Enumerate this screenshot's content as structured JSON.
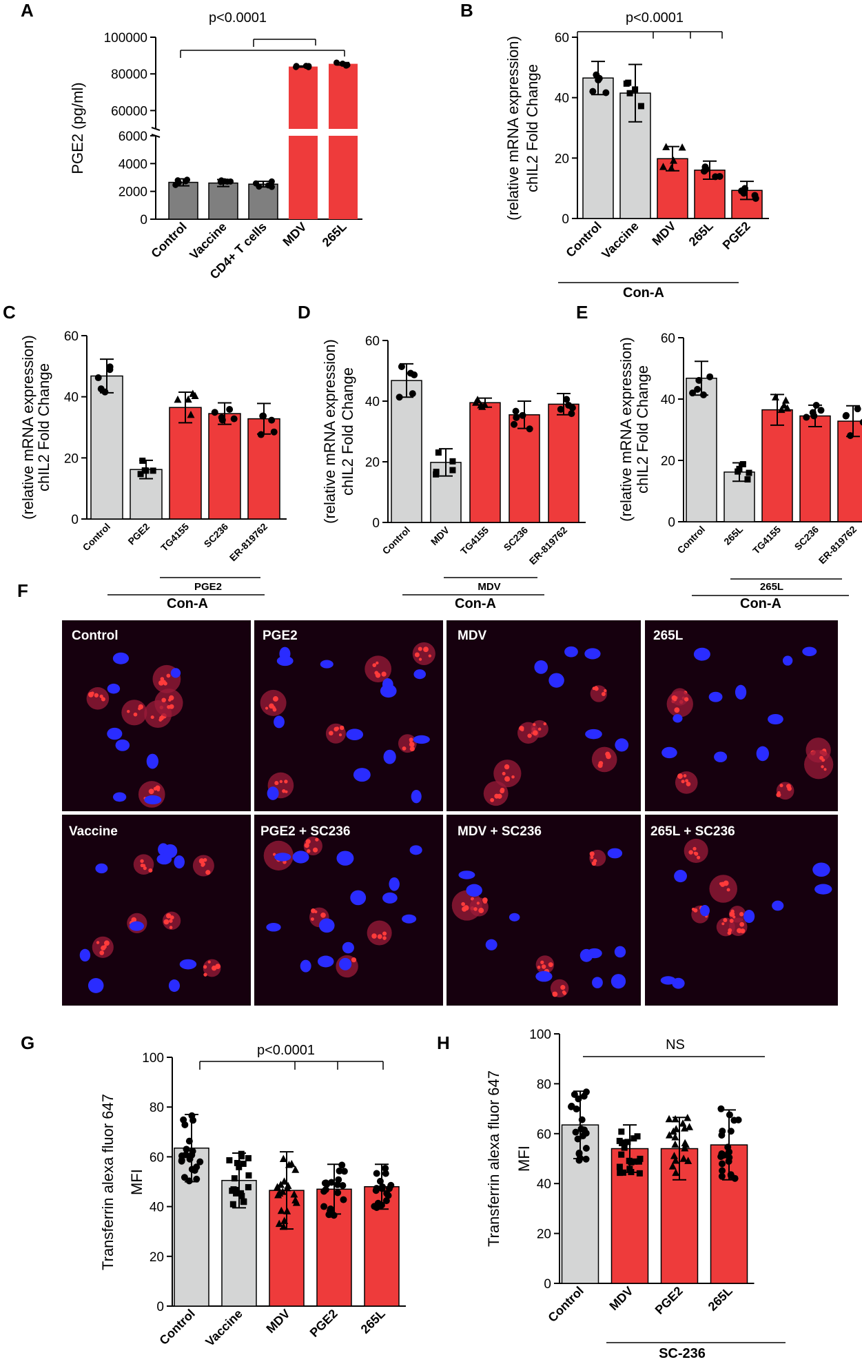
{
  "colors": {
    "grey": "#d4d5d5",
    "dark_grey": "#7f7f7f",
    "red": "#ee3b3b",
    "black": "#000000"
  },
  "panels": {
    "A": {
      "label": "A",
      "sig": "p<0.0001"
    },
    "B": {
      "label": "B",
      "sig": "p<0.0001",
      "group": "Con-A"
    },
    "C": {
      "label": "C",
      "subgroup": "PGE2",
      "group": "Con-A"
    },
    "D": {
      "label": "D",
      "subgroup": "MDV",
      "group": "Con-A"
    },
    "E": {
      "label": "E",
      "subgroup": "265L",
      "group": "Con-A"
    },
    "F": {
      "label": "F",
      "tiles": [
        "Control",
        "PGE2",
        "MDV",
        "265L",
        "Vaccine",
        "PGE2 + SC236",
        "MDV + SC236",
        "265L + SC236"
      ]
    },
    "G": {
      "label": "G",
      "sig": "p<0.0001"
    },
    "H": {
      "label": "H",
      "sig": "NS",
      "group": "SC-236"
    }
  },
  "chart_data": [
    {
      "id": "A",
      "type": "bar",
      "broken_axis": true,
      "ylabel": "PGE2 (pg/ml)",
      "categories": [
        "Control",
        "Vaccine",
        "CD4+ T cells",
        "MDV",
        "265L"
      ],
      "values": [
        2650,
        2600,
        2520,
        84000,
        85500
      ],
      "errors": [
        250,
        250,
        200,
        300,
        700
      ],
      "colors": [
        "dark_grey",
        "dark_grey",
        "dark_grey",
        "red",
        "red"
      ],
      "yticks_low": [
        "0",
        "2000",
        "4000",
        "6000"
      ],
      "yticks_high": [
        "60000",
        "80000",
        "100000"
      ],
      "ylim_low": [
        0,
        6000
      ],
      "ylim_high": [
        50000,
        100000
      ]
    },
    {
      "id": "B",
      "type": "bar",
      "ylabel": "chIL2 Fold Change",
      "ylabel2": "(relative mRNA expression)",
      "categories": [
        "Control",
        "Vaccine",
        "MDV",
        "265L",
        "PGE2"
      ],
      "values": [
        46.5,
        41.5,
        19.8,
        16.0,
        9.3
      ],
      "errors": [
        5.5,
        9.5,
        4.0,
        3.0,
        3.0
      ],
      "colors": [
        "grey",
        "grey",
        "red",
        "red",
        "red"
      ],
      "yticks": [
        "0",
        "20",
        "40",
        "60"
      ],
      "ylim": [
        0,
        60
      ]
    },
    {
      "id": "C",
      "type": "bar",
      "ylabel": "chIL2 Fold Change",
      "ylabel2": "(relative mRNA expression)",
      "categories": [
        "Control",
        "PGE2",
        "TG4155",
        "SC236",
        "ER-819762"
      ],
      "values": [
        46.8,
        16.2,
        36.5,
        34.5,
        32.8
      ],
      "errors": [
        5.5,
        3.0,
        5.0,
        3.5,
        5.0
      ],
      "colors": [
        "grey",
        "grey",
        "red",
        "red",
        "red"
      ],
      "yticks": [
        "0",
        "20",
        "40",
        "60"
      ],
      "ylim": [
        0,
        60
      ]
    },
    {
      "id": "D",
      "type": "bar",
      "ylabel": "chIL2 Fold Change",
      "ylabel2": "(relative mRNA expression)",
      "categories": [
        "Control",
        "MDV",
        "TG4155",
        "SC236",
        "ER-819762"
      ],
      "values": [
        46.8,
        19.8,
        39.5,
        35.5,
        39.0
      ],
      "errors": [
        5.5,
        4.5,
        1.5,
        4.5,
        3.5
      ],
      "colors": [
        "grey",
        "grey",
        "red",
        "red",
        "red"
      ],
      "yticks": [
        "0",
        "20",
        "40",
        "60"
      ],
      "ylim": [
        0,
        60
      ]
    },
    {
      "id": "E",
      "type": "bar",
      "ylabel": "chIL2 Fold Change",
      "ylabel2": "(relative mRNA expression)",
      "categories": [
        "Control",
        "265L",
        "TG4155",
        "SC236",
        "ER-819762"
      ],
      "values": [
        46.8,
        16.2,
        36.5,
        34.5,
        32.8
      ],
      "errors": [
        5.5,
        3.0,
        5.0,
        3.5,
        5.0
      ],
      "colors": [
        "grey",
        "grey",
        "red",
        "red",
        "red"
      ],
      "yticks": [
        "0",
        "20",
        "40",
        "60"
      ],
      "ylim": [
        0,
        60
      ]
    },
    {
      "id": "G",
      "type": "bar",
      "ylabel": "Transferrin alexa fluor 647",
      "ylabel2": "MFI",
      "categories": [
        "Control",
        "Vaccine",
        "MDV",
        "PGE2",
        "265L"
      ],
      "values": [
        63.5,
        50.5,
        46.5,
        47.0,
        48.0
      ],
      "errors": [
        13.5,
        11.0,
        15.5,
        10.0,
        9.0
      ],
      "colors": [
        "grey",
        "grey",
        "red",
        "red",
        "red"
      ],
      "yticks": [
        "0",
        "20",
        "40",
        "60",
        "80",
        "100"
      ],
      "ylim": [
        0,
        100
      ]
    },
    {
      "id": "H",
      "type": "bar",
      "ylabel": "Transferrin alexa fluor 647",
      "ylabel2": "MFI",
      "categories": [
        "Control",
        "MDV",
        "PGE2",
        "265L"
      ],
      "values": [
        63.5,
        54.0,
        54.0,
        55.5
      ],
      "errors": [
        13.5,
        9.5,
        12.5,
        14.0
      ],
      "colors": [
        "grey",
        "red",
        "red",
        "red"
      ],
      "yticks": [
        "0",
        "20",
        "40",
        "60",
        "80",
        "100"
      ],
      "ylim": [
        0,
        100
      ]
    }
  ]
}
